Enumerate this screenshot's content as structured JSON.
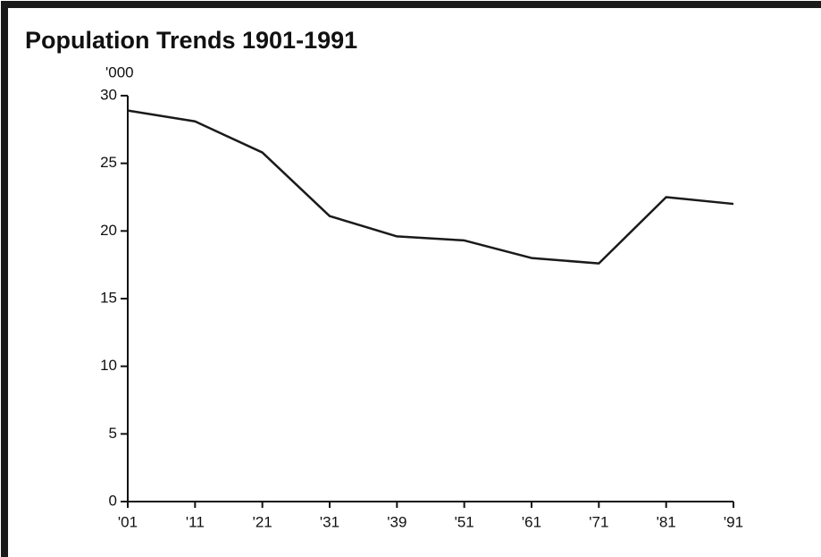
{
  "chart_data": {
    "type": "line",
    "title": "Population Trends 1901-1991",
    "y_label": "'000",
    "categories": [
      "'01",
      "'11",
      "'21",
      "'31",
      "'39",
      "'51",
      "'61",
      "'71",
      "'81",
      "'91"
    ],
    "values": [
      28.9,
      28.1,
      25.8,
      21.1,
      19.6,
      19.3,
      18.0,
      17.6,
      22.5,
      22.0
    ],
    "color": "#1a1a1a",
    "ylim": [
      0,
      30
    ],
    "yticks": [
      0,
      5,
      10,
      15,
      20,
      25,
      30
    ],
    "grid": false
  }
}
